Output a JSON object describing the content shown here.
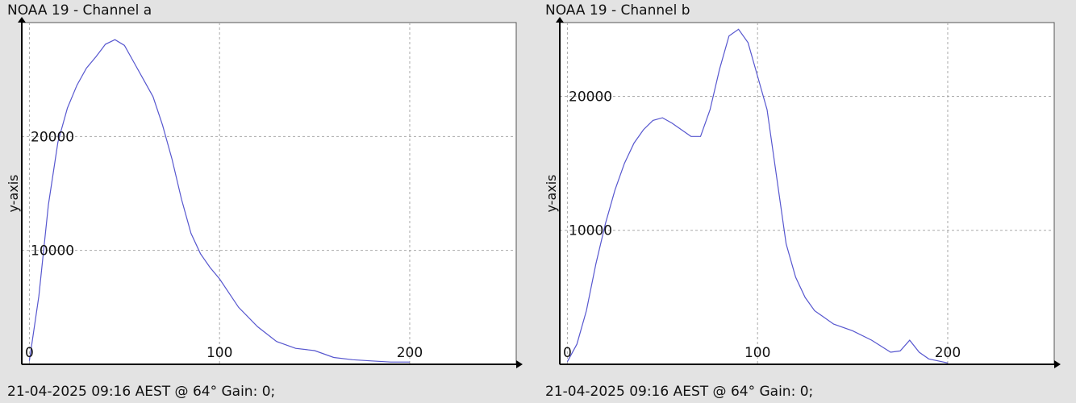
{
  "panels": [
    {
      "title": "NOAA 19 - Channel a",
      "footer": "21-04-2025 09:16 AEST @ 64° Gain: 0;"
    },
    {
      "title": "NOAA 19 - Channel b",
      "footer": "21-04-2025 09:16 AEST @ 64° Gain: 0;"
    }
  ],
  "chart_data": [
    {
      "type": "line",
      "title": "NOAA 19 - Channel a",
      "xlabel": "",
      "ylabel": "y-axis",
      "xlim": [
        -4,
        256
      ],
      "ylim": [
        0,
        30000
      ],
      "x_ticks": [
        0,
        100,
        200
      ],
      "y_ticks": [
        10000,
        20000
      ],
      "grid": true,
      "color": "#5757cf",
      "x": [
        0,
        5,
        10,
        15,
        20,
        25,
        30,
        35,
        40,
        45,
        50,
        55,
        60,
        65,
        70,
        75,
        80,
        85,
        90,
        95,
        100,
        110,
        120,
        130,
        140,
        150,
        160,
        170,
        180,
        190,
        200
      ],
      "y": [
        300,
        6000,
        14000,
        19500,
        22500,
        24500,
        26000,
        27000,
        28100,
        28500,
        28000,
        26500,
        25000,
        23500,
        21000,
        18000,
        14500,
        11500,
        9700,
        8500,
        7500,
        5000,
        3300,
        2000,
        1400,
        1200,
        600,
        400,
        300,
        200,
        200
      ]
    },
    {
      "type": "line",
      "title": "NOAA 19 - Channel b",
      "xlabel": "",
      "ylabel": "y-axis",
      "xlim": [
        -4,
        256
      ],
      "ylim": [
        0,
        25500
      ],
      "x_ticks": [
        0,
        100,
        200
      ],
      "y_ticks": [
        10000,
        20000
      ],
      "grid": true,
      "color": "#5757cf",
      "x": [
        0,
        5,
        10,
        15,
        20,
        25,
        30,
        35,
        40,
        45,
        50,
        55,
        60,
        65,
        70,
        75,
        80,
        85,
        90,
        95,
        100,
        105,
        110,
        115,
        120,
        125,
        130,
        140,
        150,
        160,
        170,
        175,
        180,
        185,
        190,
        200
      ],
      "y": [
        200,
        1500,
        4000,
        7500,
        10500,
        13000,
        15000,
        16500,
        17500,
        18200,
        18400,
        18000,
        17500,
        17000,
        17000,
        19000,
        22000,
        24500,
        25000,
        24000,
        21500,
        19000,
        14000,
        9000,
        6500,
        5000,
        4000,
        3000,
        2500,
        1800,
        900,
        1000,
        1800,
        900,
        400,
        100
      ]
    }
  ]
}
